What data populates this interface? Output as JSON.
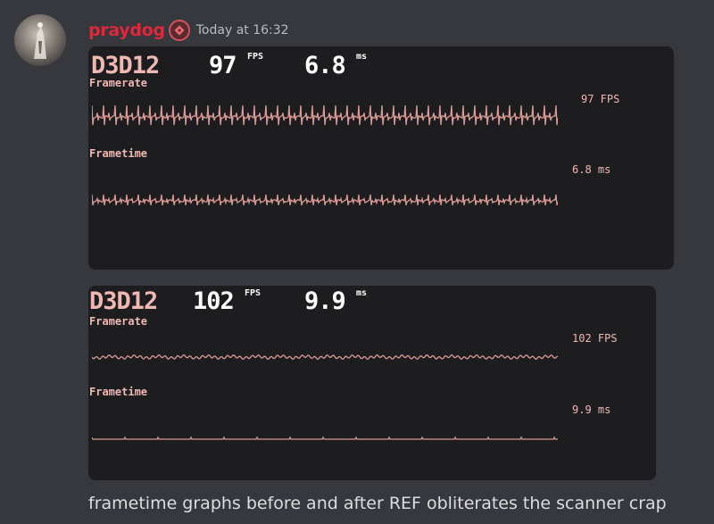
{
  "message": {
    "username": "praydog",
    "timestamp": "Today at 16:32",
    "caption": "frametime graphs before and after REF obliterates the scanner crap"
  },
  "colors": {
    "username": "#e0283a",
    "graph_text": "#f0b8b2",
    "graph_line": "#d99a95",
    "panel_bg": "#1d1d20",
    "chat_bg": "#36383e"
  },
  "overlays": [
    {
      "api": "D3D12",
      "fps_value": "97",
      "fps_unit": "FPS",
      "ms_value": "6.8",
      "ms_unit": "ms",
      "framerate_label": "Framerate",
      "framerate_readout": "97 FPS",
      "frametime_label": "Frametime",
      "frametime_readout": "6.8 ms"
    },
    {
      "api": "D3D12",
      "fps_value": "102",
      "fps_unit": "FPS",
      "ms_value": "9.9",
      "ms_unit": "ms",
      "framerate_label": "Framerate",
      "framerate_readout": "102 FPS",
      "frametime_label": "Frametime",
      "frametime_readout": "9.9 ms"
    }
  ],
  "icons": {
    "avatar": "avatar-image",
    "role_badge": "role-badge-icon"
  }
}
